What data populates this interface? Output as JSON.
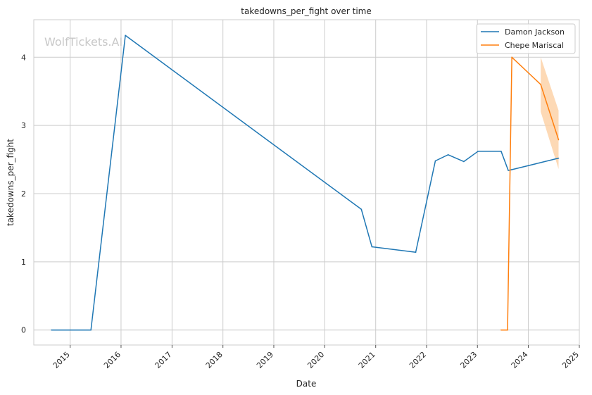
{
  "chart_data": {
    "type": "line",
    "title": "takedowns_per_fight over time",
    "xlabel": "Date",
    "ylabel": "takedowns_per_fight",
    "watermark": "WolfTickets.AI",
    "x_ticks": [
      "2015",
      "2016",
      "2017",
      "2018",
      "2019",
      "2020",
      "2021",
      "2022",
      "2023",
      "2024",
      "2025"
    ],
    "y_ticks": [
      0,
      1,
      2,
      3,
      4
    ],
    "xlim": [
      "2014-04-15",
      "2025-01-01"
    ],
    "ylim": [
      -0.22,
      4.55
    ],
    "grid": true,
    "legend_position": "top-right",
    "series": [
      {
        "name": "Damon Jackson",
        "color": "#1f77b4",
        "points": [
          {
            "x": "2014-08-20",
            "y": 0.0
          },
          {
            "x": "2015-05-30",
            "y": 0.0
          },
          {
            "x": "2016-02-01",
            "y": 4.32
          },
          {
            "x": "2020-09-20",
            "y": 1.77
          },
          {
            "x": "2020-12-05",
            "y": 1.22
          },
          {
            "x": "2021-10-15",
            "y": 1.14
          },
          {
            "x": "2022-03-05",
            "y": 2.48
          },
          {
            "x": "2022-06-05",
            "y": 2.57
          },
          {
            "x": "2022-09-25",
            "y": 2.47
          },
          {
            "x": "2023-01-05",
            "y": 2.62
          },
          {
            "x": "2023-06-20",
            "y": 2.62
          },
          {
            "x": "2023-08-10",
            "y": 2.34
          },
          {
            "x": "2023-09-01",
            "y": 2.35
          },
          {
            "x": "2024-03-20",
            "y": 2.45
          },
          {
            "x": "2024-08-05",
            "y": 2.52
          }
        ]
      },
      {
        "name": "Chepe Mariscal",
        "color": "#ff7f0e",
        "band_color": "#fdd0a2",
        "points": [
          {
            "x": "2023-06-20",
            "y": 0.0
          },
          {
            "x": "2023-08-05",
            "y": 0.0
          },
          {
            "x": "2023-09-05",
            "y": 4.0
          },
          {
            "x": "2024-03-30",
            "y": 3.6
          },
          {
            "x": "2024-08-05",
            "y": 2.79
          }
        ],
        "band": [
          {
            "x": "2024-03-30",
            "lo": 3.2,
            "hi": 4.0
          },
          {
            "x": "2024-08-05",
            "lo": 2.36,
            "hi": 3.22
          }
        ]
      }
    ]
  }
}
